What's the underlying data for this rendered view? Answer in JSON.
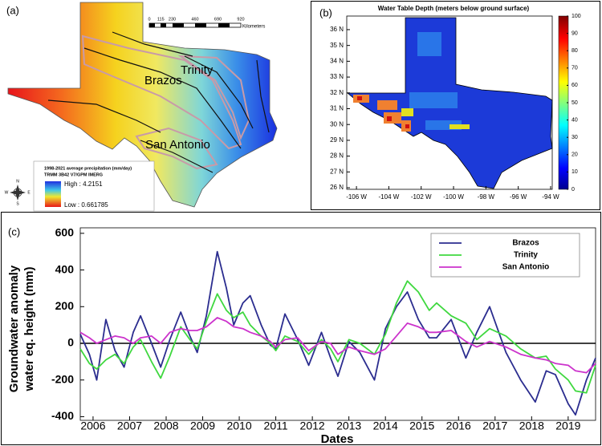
{
  "panel_a": {
    "label": "(a)",
    "scale_bar": {
      "ticks": [
        0,
        115,
        230,
        460,
        690,
        920
      ],
      "unit": "Kilometers"
    },
    "basins": [
      "Brazos",
      "Trinity",
      "San Antonio"
    ],
    "legend": {
      "title": "1998-2021 average precipitation (mm/day)",
      "source": "TRMM 3B42 V7/GPM IMERG",
      "high": "High : 4.2151",
      "low": "Low : 0.661785"
    },
    "compass": [
      "N",
      "E",
      "S",
      "W"
    ]
  },
  "panel_b": {
    "label": "(b)",
    "title": "Water Table Depth (meters below ground surface)",
    "xlim": [
      -106.6,
      -93.9
    ],
    "ylim": [
      25.9,
      36.86
    ],
    "xticks": [
      {
        "value": -106,
        "label": "-106 W"
      },
      {
        "value": -104,
        "label": "-104 W"
      },
      {
        "value": -102,
        "label": "-102 W"
      },
      {
        "value": -100,
        "label": "-100 W"
      },
      {
        "value": -98,
        "label": "-98 W"
      },
      {
        "value": -96,
        "label": "-96 W"
      },
      {
        "value": -94,
        "label": "-94 W"
      }
    ],
    "yticks": [
      {
        "value": 36,
        "label": "36 N"
      },
      {
        "value": 35,
        "label": "35 N"
      },
      {
        "value": 34,
        "label": "34 N"
      },
      {
        "value": 33,
        "label": "33 N"
      },
      {
        "value": 32,
        "label": "32 N"
      },
      {
        "value": 31,
        "label": "31 N"
      },
      {
        "value": 30,
        "label": "30 N"
      },
      {
        "value": 29,
        "label": "29 N"
      },
      {
        "value": 28,
        "label": "28 N"
      },
      {
        "value": 27,
        "label": "27 N"
      },
      {
        "value": 26,
        "label": "26 N"
      }
    ],
    "colorbar": {
      "lim": [
        0,
        100
      ],
      "ticks": [
        0,
        10,
        20,
        30,
        40,
        50,
        60,
        70,
        80,
        90,
        100
      ]
    }
  },
  "chart_data": {
    "type": "line",
    "label": "(c)",
    "x": [
      2005.65,
      2005.9,
      2006.1,
      2006.35,
      2006.6,
      2006.85,
      2007.1,
      2007.3,
      2007.6,
      2007.85,
      2008.1,
      2008.4,
      2008.65,
      2008.85,
      2009.1,
      2009.4,
      2009.65,
      2009.85,
      2010.1,
      2010.3,
      2010.6,
      2010.85,
      2011.0,
      2011.25,
      2011.6,
      2011.9,
      2012.25,
      2012.5,
      2012.7,
      2013.0,
      2013.3,
      2013.7,
      2014.0,
      2014.3,
      2014.6,
      2014.9,
      2015.2,
      2015.4,
      2015.8,
      2016.2,
      2016.5,
      2016.85,
      2017.3,
      2017.7,
      2018.1,
      2018.4,
      2018.65,
      2019.0,
      2019.2,
      2019.5,
      2019.75
    ],
    "series": [
      {
        "name": "Brazos",
        "color": "#2b2d8f",
        "values": [
          50,
          -60,
          -200,
          130,
          -40,
          -130,
          60,
          150,
          0,
          -130,
          20,
          170,
          40,
          -50,
          150,
          500,
          300,
          100,
          220,
          260,
          100,
          -10,
          -30,
          160,
          20,
          -120,
          60,
          -80,
          -180,
          10,
          -50,
          -200,
          80,
          200,
          280,
          130,
          30,
          30,
          130,
          -80,
          60,
          200,
          -50,
          -200,
          -320,
          -150,
          -170,
          -330,
          -390,
          -200,
          -80
        ]
      },
      {
        "name": "Trinity",
        "color": "#3fd83f",
        "values": [
          -30,
          -110,
          -140,
          -90,
          -60,
          -110,
          -20,
          20,
          -100,
          -190,
          -70,
          90,
          20,
          -30,
          120,
          270,
          180,
          140,
          170,
          100,
          40,
          0,
          -40,
          40,
          10,
          -60,
          20,
          -30,
          -100,
          20,
          0,
          -60,
          50,
          220,
          340,
          280,
          180,
          220,
          150,
          110,
          20,
          80,
          40,
          -30,
          -80,
          -70,
          -140,
          -200,
          -260,
          -270,
          -120
        ]
      },
      {
        "name": "San Antonio",
        "color": "#cc33cc",
        "values": [
          60,
          30,
          0,
          20,
          40,
          30,
          0,
          30,
          40,
          0,
          60,
          80,
          70,
          70,
          90,
          140,
          120,
          90,
          80,
          60,
          40,
          10,
          -20,
          20,
          30,
          -40,
          10,
          0,
          -60,
          -20,
          -40,
          -60,
          -30,
          40,
          110,
          90,
          60,
          60,
          70,
          10,
          -20,
          10,
          -20,
          -60,
          -80,
          -90,
          -110,
          -120,
          -150,
          -160,
          -110
        ]
      }
    ],
    "xlim": [
      2005.65,
      2019.75
    ],
    "ylim": [
      -420,
      630
    ],
    "xticks": [
      2006,
      2007,
      2008,
      2009,
      2010,
      2011,
      2012,
      2013,
      2014,
      2015,
      2016,
      2017,
      2018,
      2019
    ],
    "yticks": [
      -400,
      -200,
      0,
      200,
      400,
      600
    ],
    "xlabel": "Dates",
    "ylabel": [
      "Groundwater anomaly",
      "water eq. height (mm)"
    ],
    "hline": 0,
    "legend": "upper right"
  }
}
